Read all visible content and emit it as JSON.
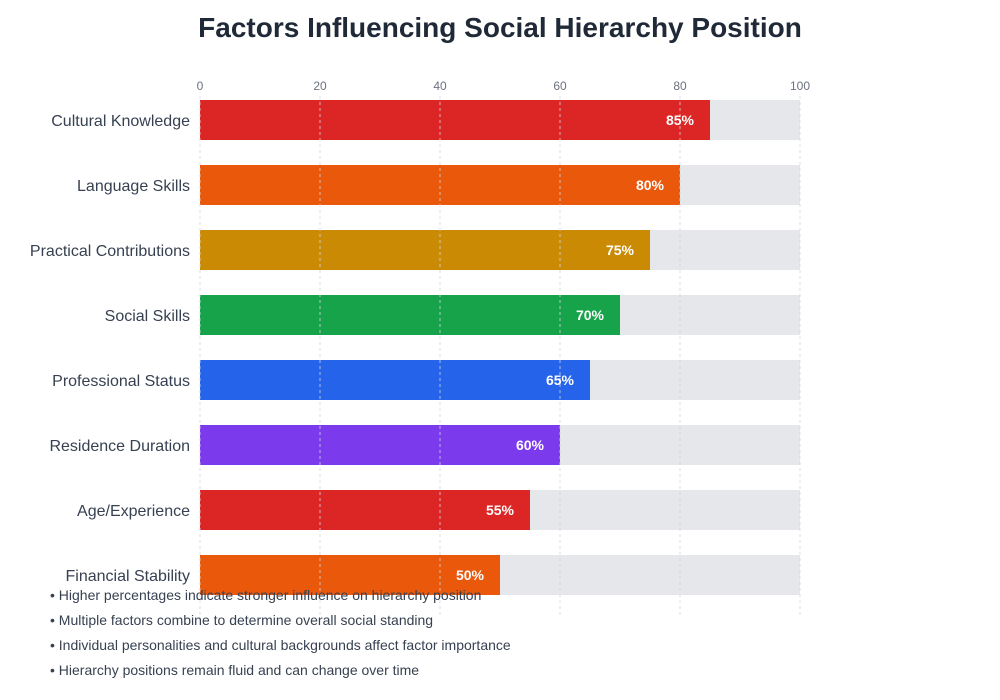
{
  "chart_data": {
    "type": "bar",
    "orientation": "horizontal",
    "title": "Factors Influencing Social Hierarchy Position",
    "categories": [
      "Cultural Knowledge",
      "Language Skills",
      "Practical Contributions",
      "Social Skills",
      "Professional Status",
      "Residence Duration",
      "Age/Experience",
      "Financial Stability"
    ],
    "values": [
      85,
      80,
      75,
      70,
      65,
      60,
      55,
      50
    ],
    "value_labels": [
      "85%",
      "80%",
      "75%",
      "70%",
      "65%",
      "60%",
      "55%",
      "50%"
    ],
    "colors": [
      "#dc2626",
      "#ea580c",
      "#ca8a04",
      "#16a34a",
      "#2563eb",
      "#7c3aed",
      "#dc2626",
      "#ea580c"
    ],
    "track_color": "#e5e7eb",
    "xlim": [
      0,
      100
    ],
    "xticks": [
      "0",
      "20",
      "40",
      "60",
      "80",
      "100"
    ],
    "xtick_position": "top",
    "grid": true,
    "xlabel": "",
    "ylabel": ""
  },
  "notes": [
    "• Higher percentages indicate stronger influence on hierarchy position",
    "• Multiple factors combine to determine overall social standing",
    "• Individual personalities and cultural backgrounds affect factor importance",
    "• Hierarchy positions remain fluid and can change over time"
  ]
}
